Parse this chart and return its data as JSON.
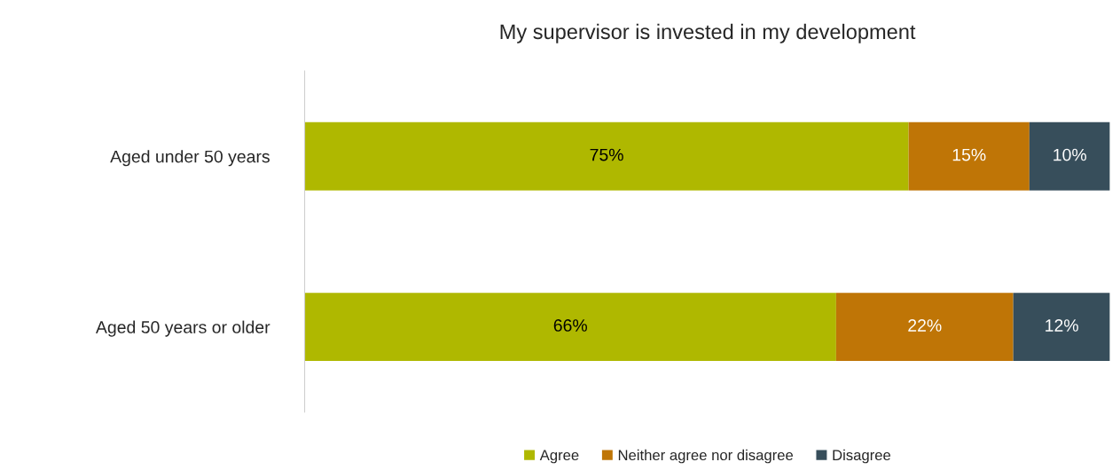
{
  "chart_data": {
    "type": "bar",
    "orientation": "horizontal",
    "stacked": true,
    "title": "My supervisor is invested in my development",
    "categories": [
      "Aged under 50 years",
      "Aged 50 years or older"
    ],
    "series": [
      {
        "name": "Agree",
        "color": "#afb800",
        "values": [
          75,
          66
        ],
        "value_labels": [
          "75%",
          "66%"
        ]
      },
      {
        "name": "Neither agree nor disagree",
        "color": "#bf7506",
        "values": [
          15,
          22
        ],
        "value_labels": [
          "15%",
          "22%"
        ]
      },
      {
        "name": "Disagree",
        "color": "#374e5b",
        "values": [
          10,
          12
        ],
        "value_labels": [
          "10%",
          "12%"
        ]
      }
    ],
    "legend": "bottom",
    "grid": false
  }
}
